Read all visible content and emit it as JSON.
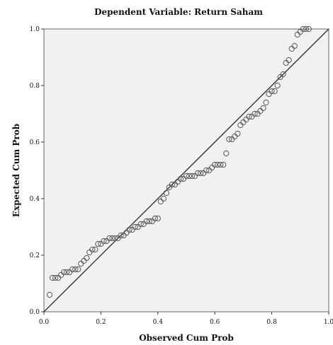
{
  "chart_data": {
    "type": "scatter",
    "title": "Dependent Variable: Return Saham",
    "xlabel": "Observed Cum Prob",
    "ylabel": "Expected Cum Prob",
    "xlim": [
      0,
      1
    ],
    "ylim": [
      0,
      1
    ],
    "x_ticks": [
      "0.0",
      "0.2",
      "0.4",
      "0.6",
      "0.8",
      "1.0"
    ],
    "y_ticks": [
      "0.0",
      "0.2",
      "0.4",
      "0.6",
      "0.8",
      "1.0"
    ],
    "reference_line": {
      "from": [
        0,
        0
      ],
      "to": [
        1,
        1
      ]
    },
    "points": [
      [
        0.02,
        0.06
      ],
      [
        0.03,
        0.12
      ],
      [
        0.04,
        0.12
      ],
      [
        0.05,
        0.12
      ],
      [
        0.06,
        0.13
      ],
      [
        0.07,
        0.14
      ],
      [
        0.08,
        0.14
      ],
      [
        0.09,
        0.14
      ],
      [
        0.1,
        0.15
      ],
      [
        0.11,
        0.15
      ],
      [
        0.12,
        0.15
      ],
      [
        0.13,
        0.17
      ],
      [
        0.14,
        0.18
      ],
      [
        0.15,
        0.19
      ],
      [
        0.16,
        0.21
      ],
      [
        0.17,
        0.22
      ],
      [
        0.18,
        0.22
      ],
      [
        0.19,
        0.24
      ],
      [
        0.2,
        0.24
      ],
      [
        0.21,
        0.25
      ],
      [
        0.22,
        0.25
      ],
      [
        0.23,
        0.26
      ],
      [
        0.24,
        0.26
      ],
      [
        0.25,
        0.26
      ],
      [
        0.26,
        0.26
      ],
      [
        0.27,
        0.27
      ],
      [
        0.28,
        0.27
      ],
      [
        0.29,
        0.28
      ],
      [
        0.3,
        0.29
      ],
      [
        0.31,
        0.29
      ],
      [
        0.32,
        0.3
      ],
      [
        0.33,
        0.3
      ],
      [
        0.34,
        0.31
      ],
      [
        0.35,
        0.31
      ],
      [
        0.36,
        0.32
      ],
      [
        0.37,
        0.32
      ],
      [
        0.38,
        0.32
      ],
      [
        0.39,
        0.33
      ],
      [
        0.4,
        0.33
      ],
      [
        0.41,
        0.39
      ],
      [
        0.42,
        0.4
      ],
      [
        0.43,
        0.42
      ],
      [
        0.44,
        0.44
      ],
      [
        0.45,
        0.45
      ],
      [
        0.46,
        0.45
      ],
      [
        0.47,
        0.46
      ],
      [
        0.48,
        0.47
      ],
      [
        0.49,
        0.47
      ],
      [
        0.5,
        0.48
      ],
      [
        0.51,
        0.48
      ],
      [
        0.52,
        0.48
      ],
      [
        0.53,
        0.48
      ],
      [
        0.54,
        0.49
      ],
      [
        0.55,
        0.49
      ],
      [
        0.56,
        0.49
      ],
      [
        0.57,
        0.5
      ],
      [
        0.58,
        0.5
      ],
      [
        0.59,
        0.51
      ],
      [
        0.6,
        0.52
      ],
      [
        0.61,
        0.52
      ],
      [
        0.62,
        0.52
      ],
      [
        0.63,
        0.52
      ],
      [
        0.64,
        0.56
      ],
      [
        0.65,
        0.61
      ],
      [
        0.66,
        0.61
      ],
      [
        0.67,
        0.62
      ],
      [
        0.68,
        0.63
      ],
      [
        0.69,
        0.66
      ],
      [
        0.7,
        0.67
      ],
      [
        0.71,
        0.68
      ],
      [
        0.72,
        0.69
      ],
      [
        0.73,
        0.69
      ],
      [
        0.74,
        0.7
      ],
      [
        0.75,
        0.7
      ],
      [
        0.76,
        0.71
      ],
      [
        0.77,
        0.72
      ],
      [
        0.78,
        0.74
      ],
      [
        0.79,
        0.77
      ],
      [
        0.8,
        0.78
      ],
      [
        0.81,
        0.78
      ],
      [
        0.82,
        0.8
      ],
      [
        0.83,
        0.83
      ],
      [
        0.84,
        0.84
      ],
      [
        0.85,
        0.88
      ],
      [
        0.86,
        0.89
      ],
      [
        0.87,
        0.93
      ],
      [
        0.88,
        0.94
      ],
      [
        0.89,
        0.98
      ],
      [
        0.9,
        0.99
      ],
      [
        0.91,
        1.0
      ],
      [
        0.92,
        1.0
      ],
      [
        0.93,
        1.0
      ]
    ]
  }
}
